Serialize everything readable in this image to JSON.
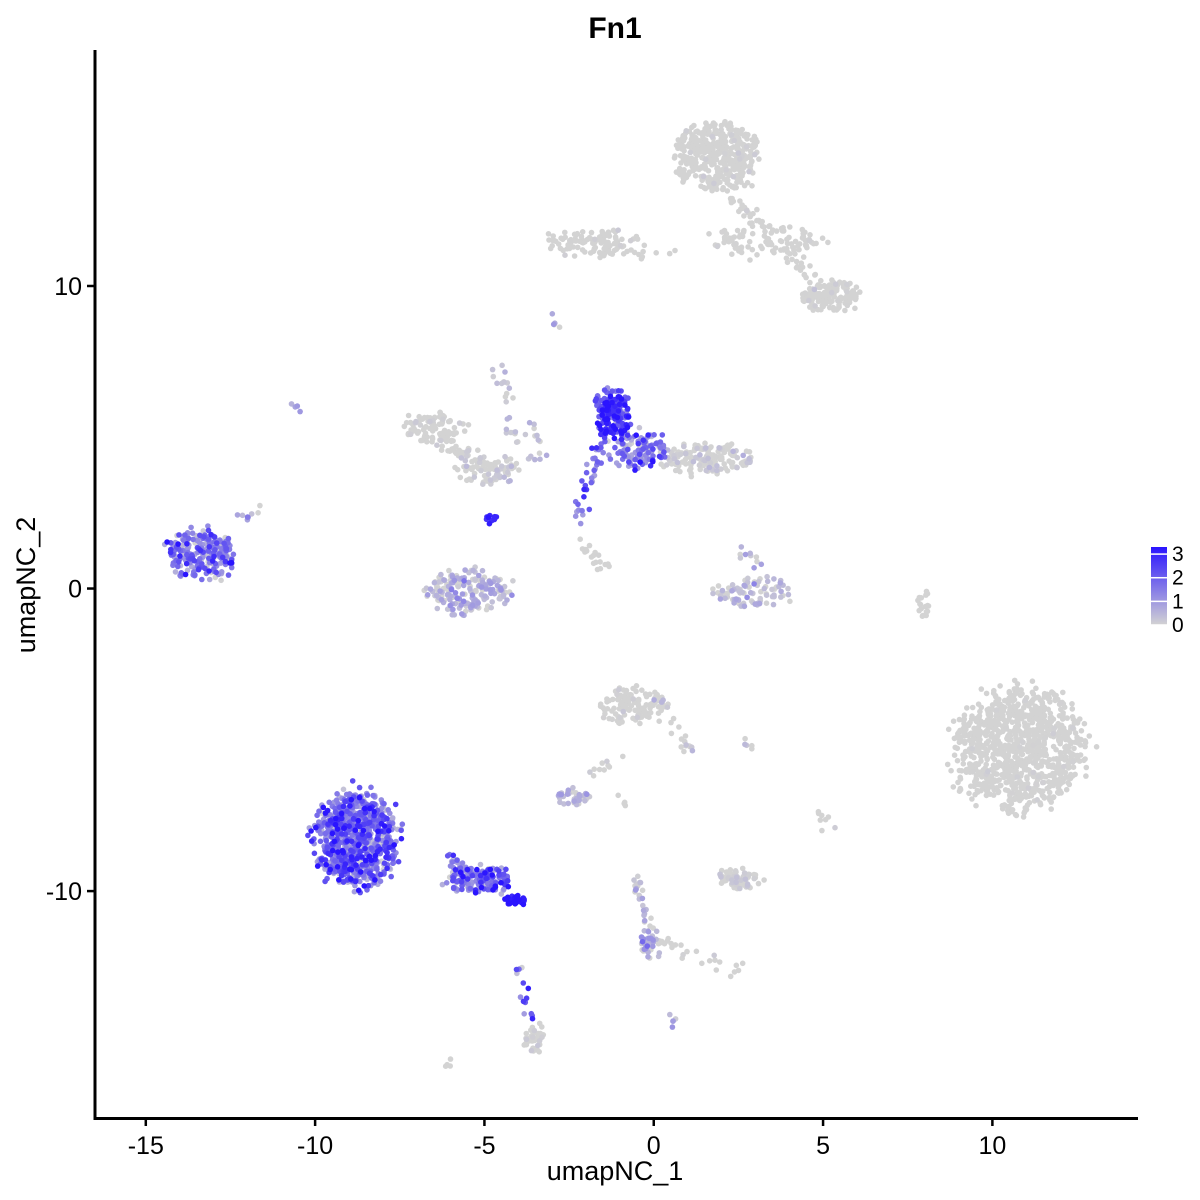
{
  "chart_data": {
    "type": "scatter",
    "title": "Fn1",
    "xlabel": "umapNC_1",
    "ylabel": "umapNC_2",
    "xlim": [
      -16.5,
      14.3
    ],
    "ylim": [
      -17.5,
      17.8
    ],
    "xticks": [
      -15,
      -10,
      -5,
      0,
      5,
      10
    ],
    "yticks": [
      -10,
      0,
      10
    ],
    "grid": false,
    "legend": {
      "position": "right",
      "type": "colorbar",
      "min": 0,
      "max": 3.3,
      "ticks": [
        0,
        1,
        2,
        3
      ],
      "low_color": "#d3d3d3",
      "high_color": "#2a14ff"
    },
    "clusters": [
      {
        "cx": 1.8,
        "cy": 14.3,
        "rx": 1.2,
        "ry": 1.1,
        "n": 420,
        "expr": 0.02,
        "spread": 0.1
      },
      {
        "cx": 3.3,
        "cy": 11.5,
        "rx": 1.6,
        "ry": 0.5,
        "n": 90,
        "expr": 0.03,
        "spread": 0.1
      },
      {
        "cx": 5.2,
        "cy": 9.7,
        "rx": 0.9,
        "ry": 0.5,
        "n": 140,
        "expr": 0.02,
        "spread": 0.1
      },
      {
        "cx": -1.8,
        "cy": 11.5,
        "rx": 1.3,
        "ry": 0.35,
        "n": 90,
        "expr": 0.02,
        "spread": 0.1
      },
      {
        "cx": -1.2,
        "cy": 5.8,
        "rx": 0.55,
        "ry": 0.75,
        "n": 180,
        "expr": 2.3,
        "spread": 0.8
      },
      {
        "cx": -0.5,
        "cy": 4.6,
        "rx": 0.9,
        "ry": 0.6,
        "n": 120,
        "expr": 1.3,
        "spread": 0.9
      },
      {
        "cx": 1.6,
        "cy": 4.3,
        "rx": 1.3,
        "ry": 0.5,
        "n": 160,
        "expr": 0.1,
        "spread": 0.2
      },
      {
        "cx": -6.5,
        "cy": 5.3,
        "rx": 0.9,
        "ry": 0.45,
        "n": 90,
        "expr": 0.05,
        "spread": 0.1
      },
      {
        "cx": -4.9,
        "cy": 3.9,
        "rx": 0.9,
        "ry": 0.45,
        "n": 80,
        "expr": 0.1,
        "spread": 0.2
      },
      {
        "cx": -5.4,
        "cy": -0.1,
        "rx": 1.2,
        "ry": 0.7,
        "n": 200,
        "expr": 0.3,
        "spread": 0.5
      },
      {
        "cx": -13.4,
        "cy": 1.1,
        "rx": 1.0,
        "ry": 0.8,
        "n": 230,
        "expr": 1.4,
        "spread": 0.9
      },
      {
        "cx": 3.0,
        "cy": -0.1,
        "rx": 1.1,
        "ry": 0.5,
        "n": 90,
        "expr": 0.2,
        "spread": 0.4
      },
      {
        "cx": 10.8,
        "cy": -5.3,
        "rx": 1.9,
        "ry": 1.9,
        "n": 1000,
        "expr": 0.01,
        "spread": 0.05
      },
      {
        "cx": -8.8,
        "cy": -8.3,
        "rx": 1.2,
        "ry": 1.5,
        "n": 800,
        "expr": 1.6,
        "spread": 0.9
      },
      {
        "cx": -5.2,
        "cy": -9.6,
        "rx": 1.0,
        "ry": 0.4,
        "n": 140,
        "expr": 1.6,
        "spread": 1.0
      },
      {
        "cx": -4.1,
        "cy": -10.3,
        "rx": 0.3,
        "ry": 0.15,
        "n": 30,
        "expr": 3.1,
        "spread": 0.3
      },
      {
        "cx": -0.7,
        "cy": -3.9,
        "rx": 0.9,
        "ry": 0.6,
        "n": 110,
        "expr": 0.05,
        "spread": 0.1
      },
      {
        "cx": 2.5,
        "cy": -9.6,
        "rx": 0.6,
        "ry": 0.3,
        "n": 70,
        "expr": 0.1,
        "spread": 0.2
      },
      {
        "cx": -2.4,
        "cy": -6.9,
        "rx": 0.5,
        "ry": 0.25,
        "n": 40,
        "expr": 0.3,
        "spread": 0.4
      },
      {
        "cx": -3.5,
        "cy": -14.9,
        "rx": 0.35,
        "ry": 0.5,
        "n": 40,
        "expr": 0.05,
        "spread": 0.1
      },
      {
        "cx": -0.2,
        "cy": -11.7,
        "rx": 0.2,
        "ry": 0.4,
        "n": 30,
        "expr": 0.8,
        "spread": 0.6
      },
      {
        "cx": 8.0,
        "cy": -0.5,
        "rx": 0.2,
        "ry": 0.5,
        "n": 18,
        "expr": 0.01,
        "spread": 0.05
      },
      {
        "cx": -4.8,
        "cy": 2.3,
        "rx": 0.15,
        "ry": 0.2,
        "n": 10,
        "expr": 3.1,
        "spread": 0.2
      }
    ],
    "trails": [
      {
        "from": [
          -1.4,
          5.2
        ],
        "to": [
          -2.3,
          2.2
        ],
        "n": 40,
        "expr": 1.6,
        "spread": 0.8
      },
      {
        "from": [
          -6.1,
          -8.9
        ],
        "to": [
          -4.4,
          -10.1
        ],
        "n": 50,
        "expr": 1.5,
        "spread": 0.8
      },
      {
        "from": [
          -4.0,
          -12.3
        ],
        "to": [
          -3.6,
          -14.2
        ],
        "n": 14,
        "expr": 1.2,
        "spread": 1.0
      },
      {
        "from": [
          -6.4,
          4.8
        ],
        "to": [
          -4.4,
          3.9
        ],
        "n": 40,
        "expr": 0.05,
        "spread": 0.1
      },
      {
        "from": [
          -4.6,
          7.5
        ],
        "to": [
          -4.0,
          4.1
        ],
        "n": 25,
        "expr": 0.2,
        "spread": 0.3
      },
      {
        "from": [
          -3.6,
          5.5
        ],
        "to": [
          -3.4,
          4.1
        ],
        "n": 15,
        "expr": 0.3,
        "spread": 0.4
      },
      {
        "from": [
          -2.3,
          1.5
        ],
        "to": [
          -1.3,
          0.6
        ],
        "n": 20,
        "expr": 0.01,
        "spread": 0.05
      },
      {
        "from": [
          -0.6,
          -9.3
        ],
        "to": [
          0.1,
          -12.1
        ],
        "n": 35,
        "expr": 0.3,
        "spread": 0.4
      },
      {
        "from": [
          0.2,
          -11.7
        ],
        "to": [
          2.5,
          -12.7
        ],
        "n": 25,
        "expr": 0.03,
        "spread": 0.1
      },
      {
        "from": [
          0.1,
          -3.4
        ],
        "to": [
          1.1,
          -5.4
        ],
        "n": 30,
        "expr": 0.1,
        "spread": 0.2
      },
      {
        "from": [
          3.0,
          0.8
        ],
        "to": [
          2.5,
          1.4
        ],
        "n": 10,
        "expr": 0.3,
        "spread": 0.4
      },
      {
        "from": [
          -1.8,
          -6.2
        ],
        "to": [
          -1.1,
          -5.7
        ],
        "n": 10,
        "expr": 0.05,
        "spread": 0.1
      },
      {
        "from": [
          2.1,
          13.2
        ],
        "to": [
          4.7,
          10.2
        ],
        "n": 60,
        "expr": 0.03,
        "spread": 0.1
      },
      {
        "from": [
          -2.9,
          11.2
        ],
        "to": [
          0.5,
          11.0
        ],
        "n": 30,
        "expr": 0.02,
        "spread": 0.1
      },
      {
        "from": [
          -3.0,
          8.5
        ],
        "to": [
          -2.8,
          8.8
        ],
        "n": 5,
        "expr": 0.5,
        "spread": 0.3
      },
      {
        "from": [
          -6.2,
          -15.8
        ],
        "to": [
          -6.0,
          -15.6
        ],
        "n": 4,
        "expr": 0.01,
        "spread": 0.05
      },
      {
        "from": [
          5.0,
          -7.4
        ],
        "to": [
          5.2,
          -7.8
        ],
        "n": 8,
        "expr": 0.05,
        "spread": 0.1
      },
      {
        "from": [
          0.5,
          -14.2
        ],
        "to": [
          0.6,
          -14.3
        ],
        "n": 5,
        "expr": 0.5,
        "spread": 0.3
      },
      {
        "from": [
          -10.6,
          6.1
        ],
        "to": [
          -10.5,
          6.0
        ],
        "n": 4,
        "expr": 1.0,
        "spread": 0.3
      },
      {
        "from": [
          -12.2,
          2.4
        ],
        "to": [
          -11.6,
          2.7
        ],
        "n": 8,
        "expr": 0.4,
        "spread": 0.4
      },
      {
        "from": [
          2.7,
          -5.1
        ],
        "to": [
          3.0,
          -5.1
        ],
        "n": 5,
        "expr": 0.1,
        "spread": 0.2
      },
      {
        "from": [
          -1.0,
          -7.0
        ],
        "to": [
          -0.8,
          -7.1
        ],
        "n": 4,
        "expr": 0.05,
        "spread": 0.1
      }
    ]
  }
}
